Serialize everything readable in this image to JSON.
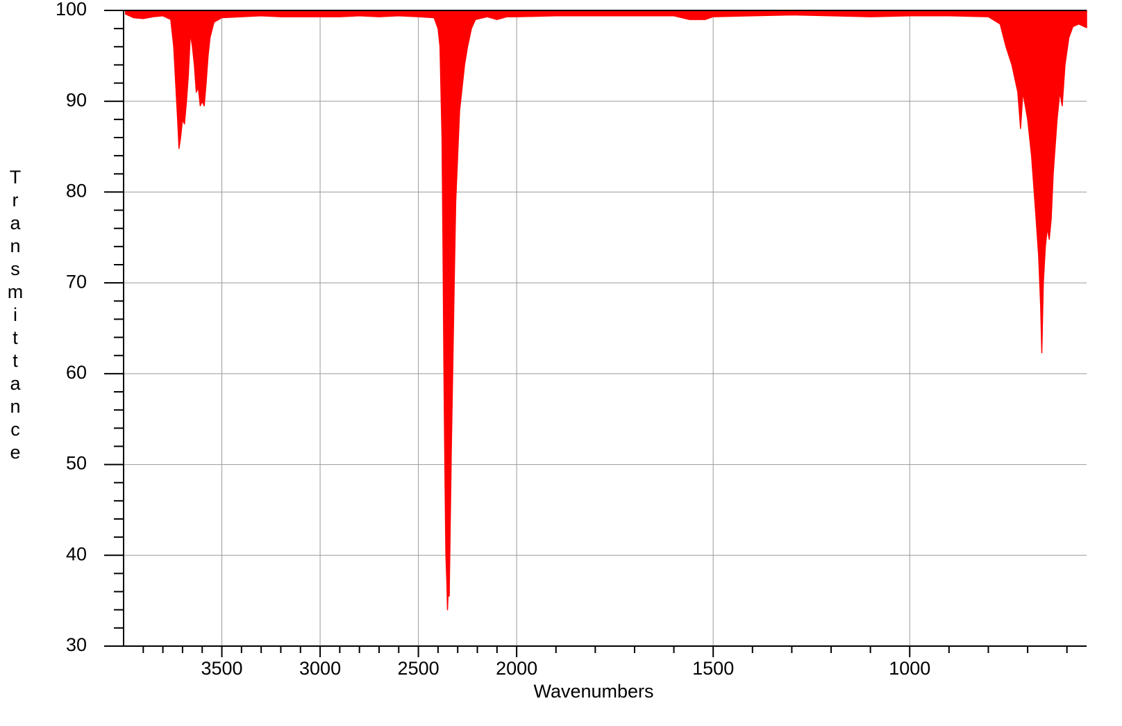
{
  "chart_data": {
    "type": "area",
    "x_label": "Wavenumbers",
    "y_label": "Transmittance",
    "color": "#ff0000",
    "xlim": [
      4000,
      550
    ],
    "xbreak": 2000,
    "xbreak_factor": 2,
    "ylim": [
      30,
      100
    ],
    "xticks": [
      3500,
      3000,
      2500,
      2000,
      1500,
      1000
    ],
    "xminorticks": [
      3900,
      3800,
      3700,
      3600,
      3400,
      3300,
      3200,
      3100,
      2900,
      2800,
      2700,
      2600,
      2400,
      2300,
      2200,
      2100,
      1900,
      1800,
      1700,
      1600,
      1400,
      1300,
      1200,
      1100,
      900,
      800,
      700,
      600
    ],
    "yticks": [
      30,
      40,
      50,
      60,
      70,
      80,
      90,
      100
    ],
    "yminorticks": [
      32,
      34,
      36,
      38,
      42,
      44,
      46,
      48,
      52,
      54,
      56,
      58,
      62,
      64,
      66,
      68,
      72,
      74,
      76,
      78,
      82,
      84,
      86,
      88,
      92,
      94,
      96,
      98
    ],
    "grid": true,
    "x": [
      3990,
      3950,
      3900,
      3850,
      3800,
      3760,
      3745,
      3735,
      3725,
      3718,
      3710,
      3700,
      3690,
      3680,
      3670,
      3660,
      3650,
      3640,
      3630,
      3620,
      3610,
      3600,
      3590,
      3580,
      3570,
      3560,
      3540,
      3500,
      3400,
      3300,
      3200,
      3100,
      3000,
      2900,
      2800,
      2700,
      2600,
      2500,
      2420,
      2400,
      2390,
      2380,
      2375,
      2370,
      2365,
      2360,
      2355,
      2352,
      2348,
      2343,
      2338,
      2333,
      2325,
      2318,
      2310,
      2300,
      2290,
      2280,
      2265,
      2250,
      2230,
      2210,
      2150,
      2100,
      2050,
      2000,
      1900,
      1800,
      1700,
      1600,
      1560,
      1520,
      1500,
      1400,
      1300,
      1200,
      1100,
      1000,
      900,
      800,
      770,
      755,
      740,
      725,
      718,
      712,
      700,
      690,
      680,
      672,
      667,
      664,
      660,
      655,
      650,
      645,
      640,
      635,
      625,
      618,
      612,
      605,
      595,
      585,
      570,
      550
    ],
    "values": [
      99.6,
      99.2,
      99.1,
      99.3,
      99.4,
      99,
      96,
      92,
      88,
      84.8,
      86,
      88,
      87.5,
      90,
      93,
      97.5,
      96,
      94,
      91,
      91.5,
      89.5,
      90,
      89.5,
      92,
      95,
      97,
      98.7,
      99.2,
      99.3,
      99.4,
      99.3,
      99.3,
      99.3,
      99.3,
      99.4,
      99.3,
      99.4,
      99.3,
      99.2,
      98,
      96,
      86,
      74,
      60,
      49,
      40,
      37,
      34,
      36,
      35.5,
      43,
      51,
      60.5,
      69.5,
      79,
      84,
      89,
      91,
      94,
      96,
      98,
      99,
      99.3,
      99,
      99.3,
      99.3,
      99.4,
      99.4,
      99.4,
      99.4,
      99,
      99,
      99.3,
      99.4,
      99.5,
      99.4,
      99.3,
      99.4,
      99.4,
      99.3,
      98.5,
      96,
      94,
      91,
      87,
      91,
      88,
      84,
      78,
      73,
      67.5,
      62.3,
      70,
      74,
      76,
      74.8,
      77,
      82,
      88,
      91,
      89.5,
      94,
      97,
      98.2,
      98.5,
      98.1
    ]
  }
}
